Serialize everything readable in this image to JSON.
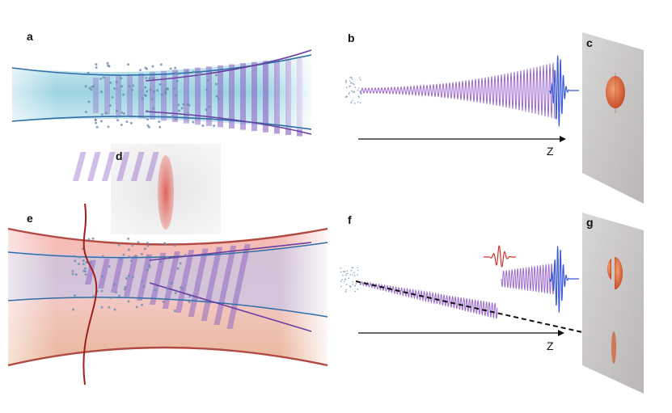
{
  "panels": {
    "a": {
      "label": "a"
    },
    "b": {
      "label": "b",
      "axis_label": "Z"
    },
    "c": {
      "label": "c"
    },
    "d": {
      "label": "d"
    },
    "e": {
      "label": "e"
    },
    "f": {
      "label": "f",
      "axis_label": "Z"
    },
    "g": {
      "label": "g"
    }
  }
}
